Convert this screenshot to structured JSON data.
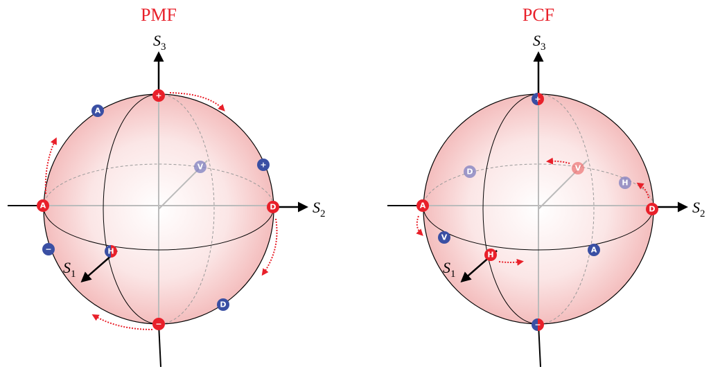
{
  "diagrams": [
    {
      "title": "PMF",
      "axes": {
        "s3": {
          "symbol": "S",
          "subscript": "3"
        },
        "s2": {
          "symbol": "S",
          "subscript": "2"
        },
        "s1": {
          "symbol": "S",
          "subscript": "1"
        }
      },
      "points": [
        {
          "label": "+",
          "color": "red"
        },
        {
          "label": "A",
          "color": "red"
        },
        {
          "label": "D",
          "color": "red"
        },
        {
          "label": "−",
          "color": "red"
        },
        {
          "label": "H",
          "color": "split"
        },
        {
          "label": "A",
          "color": "blue"
        },
        {
          "label": "+",
          "color": "blue"
        },
        {
          "label": "−",
          "color": "blue"
        },
        {
          "label": "D",
          "color": "blue"
        },
        {
          "label": "V",
          "color": "faded-blue"
        }
      ]
    },
    {
      "title": "PCF",
      "axes": {
        "s3": {
          "symbol": "S",
          "subscript": "3"
        },
        "s2": {
          "symbol": "S",
          "subscript": "2"
        },
        "s1": {
          "symbol": "S",
          "subscript": "1"
        }
      },
      "points": [
        {
          "label": "+",
          "color": "split"
        },
        {
          "label": "−",
          "color": "split"
        },
        {
          "label": "A",
          "color": "red"
        },
        {
          "label": "D",
          "color": "red"
        },
        {
          "label": "H",
          "color": "red"
        },
        {
          "label": "V",
          "color": "faded-red"
        },
        {
          "label": "D",
          "color": "faded-blue"
        },
        {
          "label": "H",
          "color": "faded-blue"
        },
        {
          "label": "V",
          "color": "blue"
        },
        {
          "label": "A",
          "color": "blue"
        }
      ]
    }
  ]
}
